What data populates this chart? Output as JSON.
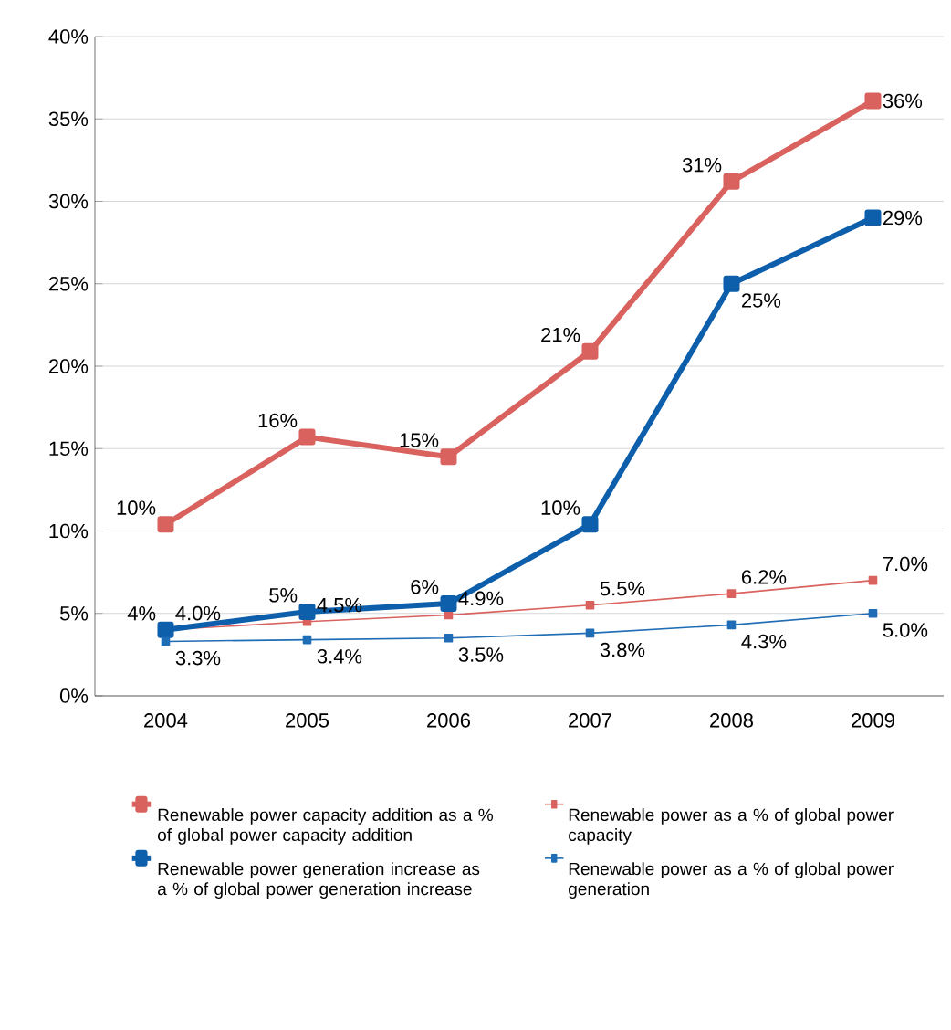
{
  "chart_data": {
    "type": "line",
    "categories": [
      "2004",
      "2005",
      "2006",
      "2007",
      "2008",
      "2009"
    ],
    "series": [
      {
        "name": "Renewable power capacity addition as a % of global power capacity addition",
        "color": "#d9625f",
        "values": [
          10.4,
          15.7,
          14.5,
          20.9,
          31.2,
          36.1
        ],
        "value_labels": [
          "10%",
          "16%",
          "15%",
          "21%",
          "31%",
          "36%"
        ]
      },
      {
        "name": "Renewable power as a % of global power capacity",
        "color": "#d9625f",
        "values": [
          4.0,
          4.5,
          4.9,
          5.5,
          6.2,
          7.0
        ],
        "value_labels": [
          "4.0%",
          "4.5%",
          "4.9%",
          "5.5%",
          "6.2%",
          "7.0%"
        ]
      },
      {
        "name": "Renewable power generation increase as a % of global power generation increase",
        "color": "#0d5fac",
        "values": [
          4.0,
          5.1,
          5.6,
          10.4,
          25.0,
          29.0
        ],
        "value_labels": [
          "4%",
          "5%",
          "6%",
          "10%",
          "25%",
          "29%"
        ]
      },
      {
        "name": "Renewable power as a % of global power generation",
        "color": "#1f6db5",
        "values": [
          3.3,
          3.4,
          3.5,
          3.8,
          4.3,
          5.0
        ],
        "value_labels": [
          "3.3%",
          "3.4%",
          "3.5%",
          "3.8%",
          "4.3%",
          "5.0%"
        ]
      }
    ],
    "ylim": [
      0,
      40
    ],
    "yticks": [
      {
        "value": 0,
        "label": "0%"
      },
      {
        "value": 5,
        "label": "5%"
      },
      {
        "value": 10,
        "label": "10%"
      },
      {
        "value": 15,
        "label": "15%"
      },
      {
        "value": 20,
        "label": "20%"
      },
      {
        "value": 25,
        "label": "25%"
      },
      {
        "value": 30,
        "label": "30%"
      },
      {
        "value": 35,
        "label": "35%"
      },
      {
        "value": 40,
        "label": "40%"
      }
    ],
    "grid": "y",
    "legend": "bottom",
    "marker": "square",
    "line_style": "solid"
  }
}
